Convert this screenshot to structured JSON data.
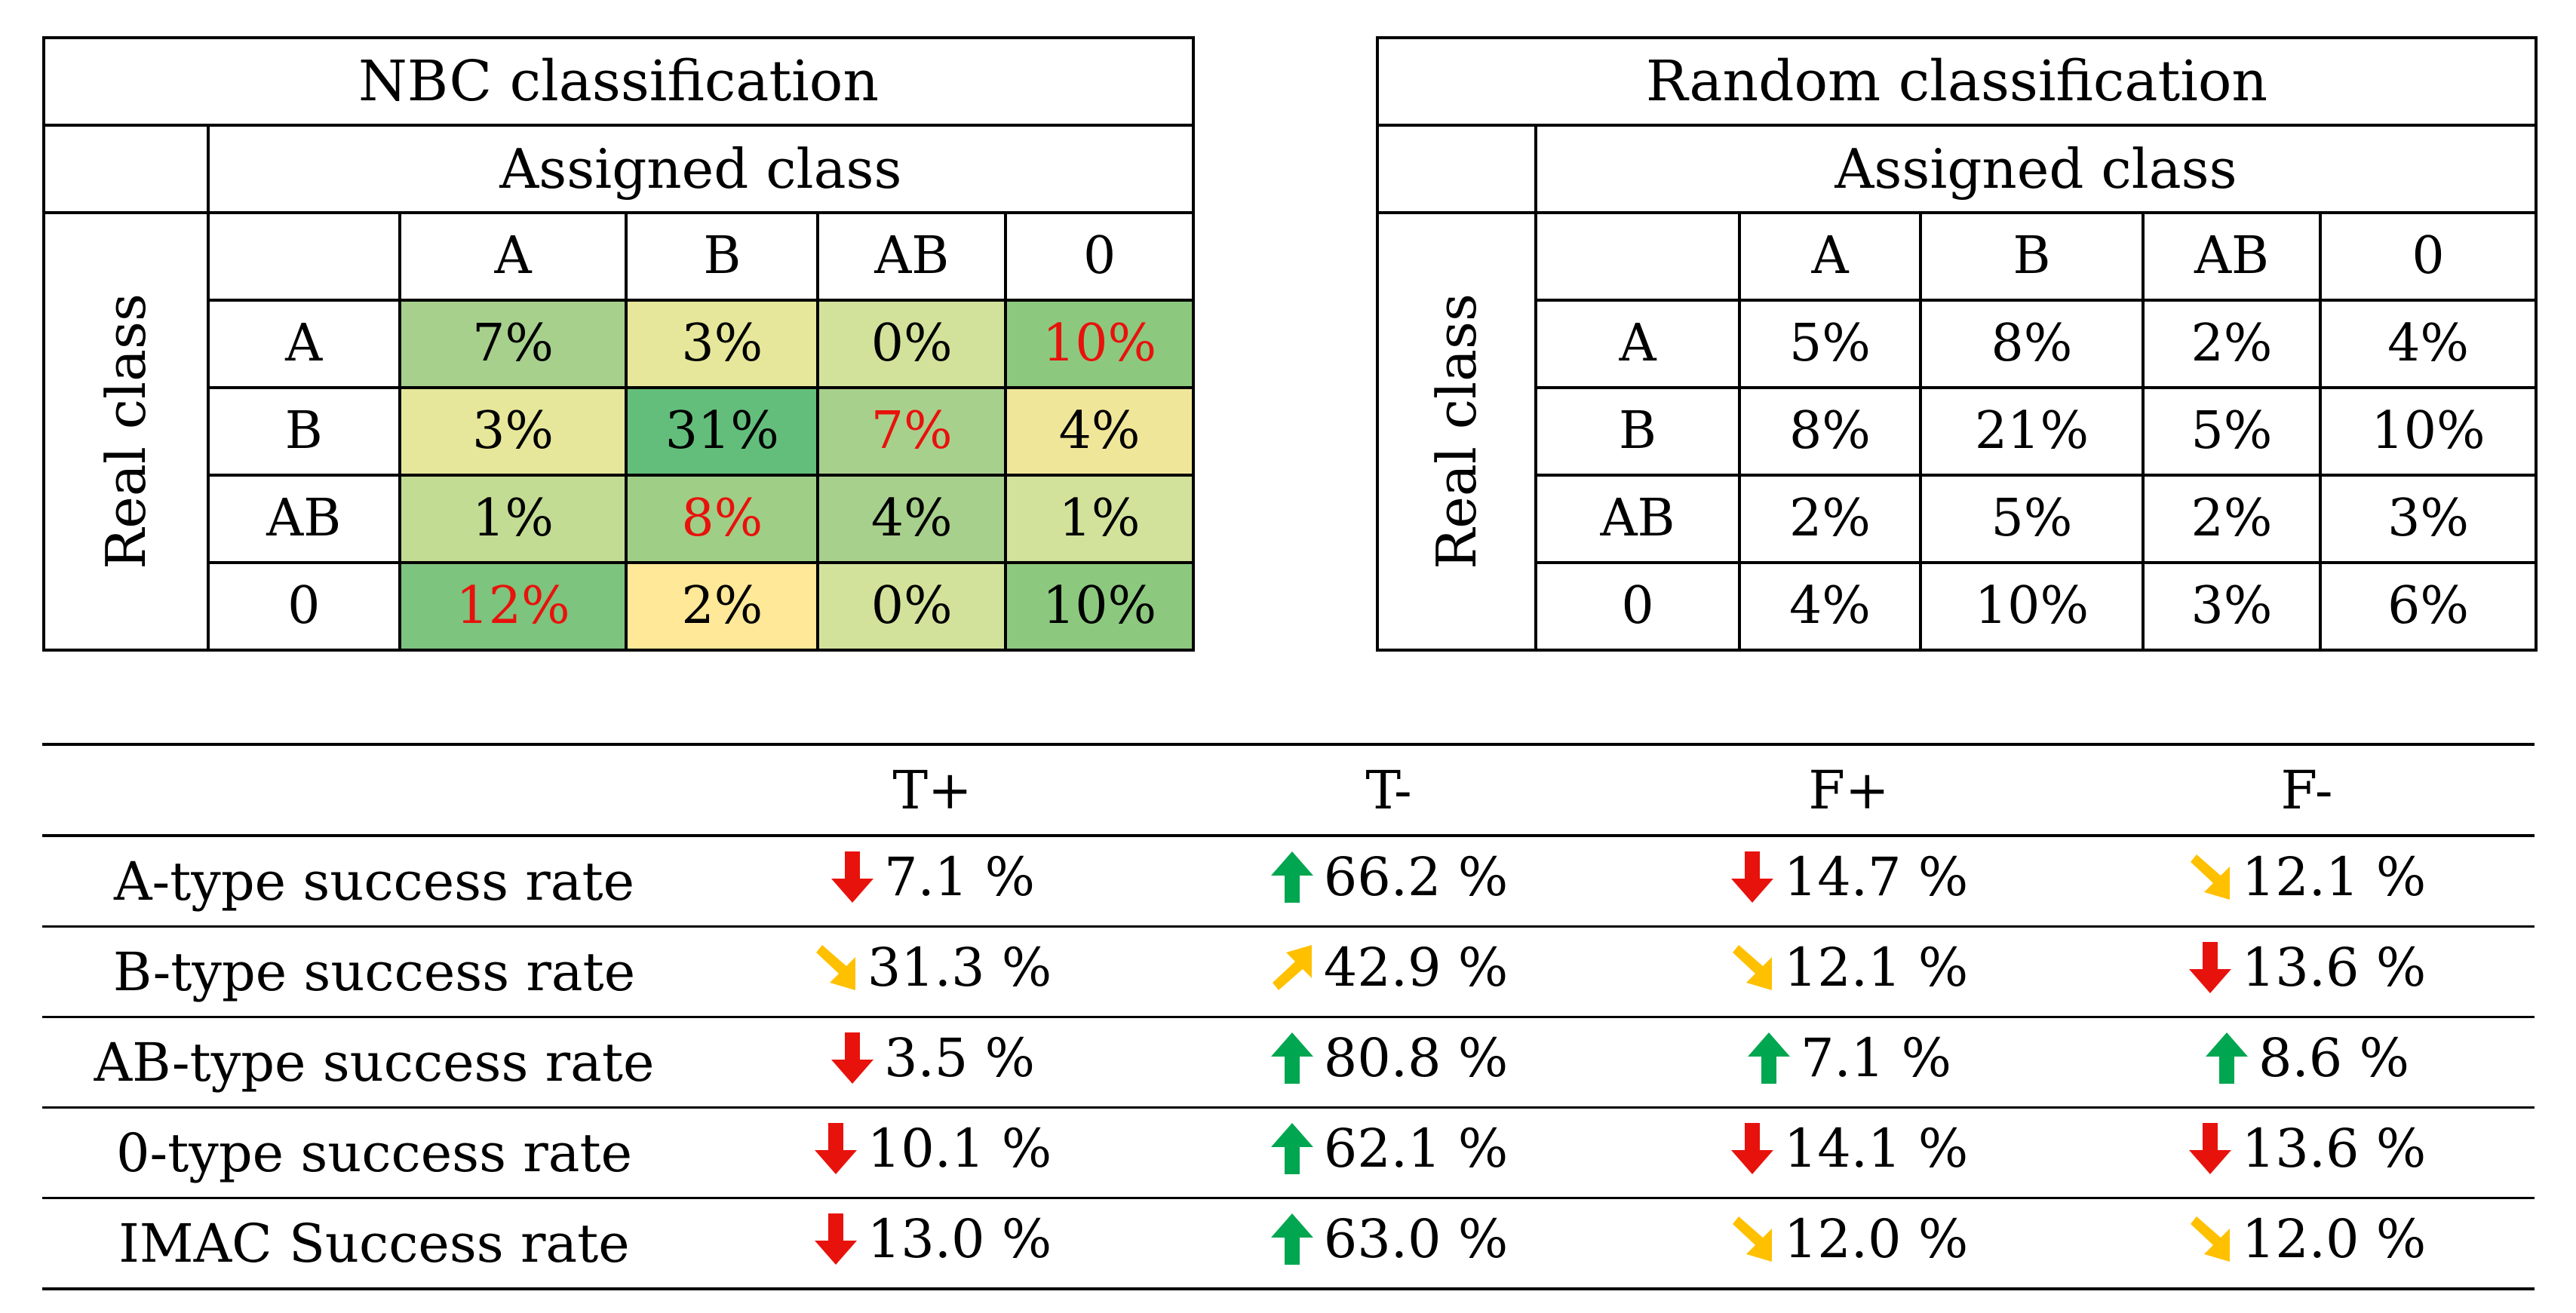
{
  "nbc": {
    "title": "NBC classification",
    "assigned_label": "Assigned class",
    "real_label": "Real class",
    "columns": [
      "A",
      "B",
      "AB",
      "0"
    ],
    "rows": [
      {
        "label": "A",
        "cells": [
          {
            "v": "7%",
            "bg": "#a8d08d",
            "red": false
          },
          {
            "v": "3%",
            "bg": "#e6e79a",
            "red": false
          },
          {
            "v": "0%",
            "bg": "#d3e29b",
            "red": false
          },
          {
            "v": "10%",
            "bg": "#8cc97f",
            "red": true
          }
        ]
      },
      {
        "label": "B",
        "cells": [
          {
            "v": "3%",
            "bg": "#e6e79a",
            "red": false
          },
          {
            "v": "31%",
            "bg": "#63be7b",
            "red": false
          },
          {
            "v": "7%",
            "bg": "#a8d08d",
            "red": true
          },
          {
            "v": "4%",
            "bg": "#f0e699",
            "red": false
          }
        ]
      },
      {
        "label": "AB",
        "cells": [
          {
            "v": "1%",
            "bg": "#c3dc93",
            "red": false
          },
          {
            "v": "8%",
            "bg": "#9fcf86",
            "red": true
          },
          {
            "v": "4%",
            "bg": "#a8d08d",
            "red": false
          },
          {
            "v": "1%",
            "bg": "#d3e29b",
            "red": false
          }
        ]
      },
      {
        "label": "0",
        "cells": [
          {
            "v": "12%",
            "bg": "#7dc47e",
            "red": true
          },
          {
            "v": "2%",
            "bg": "#ffe898",
            "red": false
          },
          {
            "v": "0%",
            "bg": "#d3e29b",
            "red": false
          },
          {
            "v": "10%",
            "bg": "#8cc97f",
            "red": false
          }
        ]
      }
    ]
  },
  "random": {
    "title": "Random classification",
    "assigned_label": "Assigned class",
    "real_label": "Real class",
    "columns": [
      "A",
      "B",
      "AB",
      "0"
    ],
    "rows": [
      {
        "label": "A",
        "cells": [
          "5%",
          "8%",
          "2%",
          "4%"
        ]
      },
      {
        "label": "B",
        "cells": [
          "8%",
          "21%",
          "5%",
          "10%"
        ]
      },
      {
        "label": "AB",
        "cells": [
          "2%",
          "5%",
          "2%",
          "3%"
        ]
      },
      {
        "label": "0",
        "cells": [
          "4%",
          "10%",
          "3%",
          "6%"
        ]
      }
    ]
  },
  "summary": {
    "columns": [
      "T+",
      "T-",
      "F+",
      "F-"
    ],
    "arrow_colors": {
      "up": "#00a650",
      "down": "#e8120c",
      "down-right": "#ffc000",
      "up-right": "#ffc000"
    },
    "rows": [
      {
        "label": "A-type success rate",
        "cells": [
          {
            "v": "7.1 %",
            "arrow": "down"
          },
          {
            "v": "66.2 %",
            "arrow": "up"
          },
          {
            "v": "14.7 %",
            "arrow": "down"
          },
          {
            "v": "12.1 %",
            "arrow": "down-right"
          }
        ]
      },
      {
        "label": "B-type success rate",
        "cells": [
          {
            "v": "31.3 %",
            "arrow": "down-right"
          },
          {
            "v": "42.9 %",
            "arrow": "up-right"
          },
          {
            "v": "12.1 %",
            "arrow": "down-right"
          },
          {
            "v": "13.6 %",
            "arrow": "down"
          }
        ]
      },
      {
        "label": "AB-type success rate",
        "cells": [
          {
            "v": "3.5 %",
            "arrow": "down"
          },
          {
            "v": "80.8 %",
            "arrow": "up"
          },
          {
            "v": "7.1 %",
            "arrow": "up"
          },
          {
            "v": "8.6 %",
            "arrow": "up"
          }
        ]
      },
      {
        "label": "0-type success rate",
        "cells": [
          {
            "v": "10.1 %",
            "arrow": "down"
          },
          {
            "v": "62.1 %",
            "arrow": "up"
          },
          {
            "v": "14.1 %",
            "arrow": "down"
          },
          {
            "v": "13.6 %",
            "arrow": "down"
          }
        ]
      },
      {
        "label": "IMAC Success rate",
        "cells": [
          {
            "v": "13.0 %",
            "arrow": "down"
          },
          {
            "v": "63.0 %",
            "arrow": "up"
          },
          {
            "v": "12.0 %",
            "arrow": "down-right"
          },
          {
            "v": "12.0 %",
            "arrow": "down-right"
          }
        ]
      }
    ]
  }
}
